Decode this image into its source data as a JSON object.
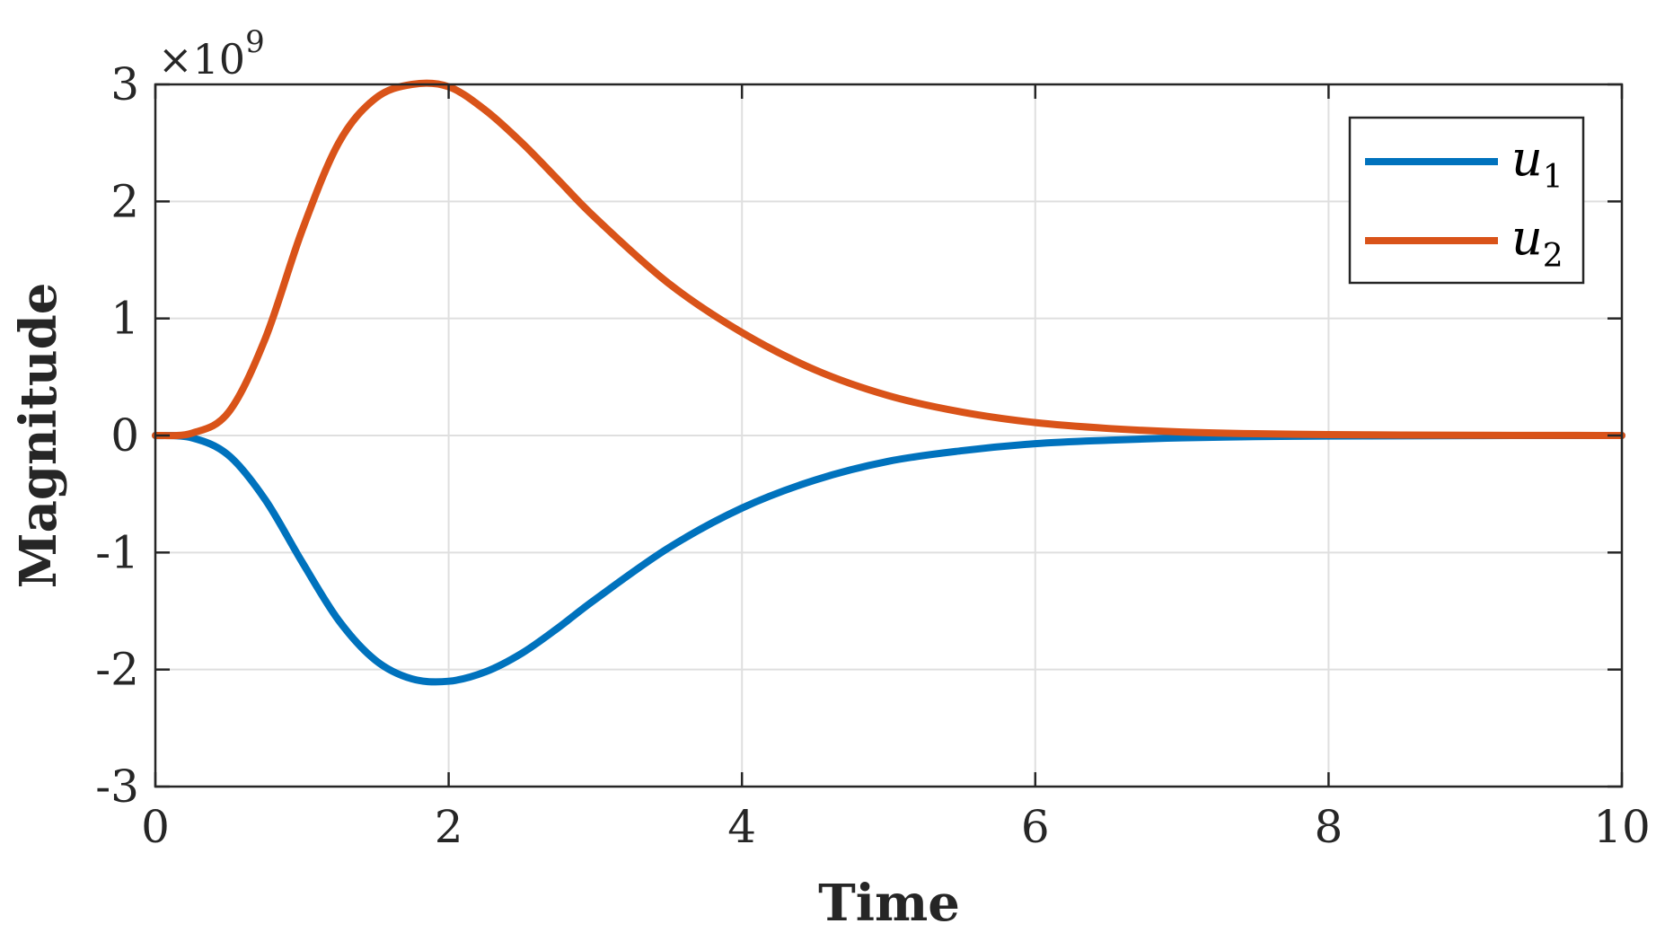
{
  "chart_data": {
    "type": "line",
    "xlabel": "Time",
    "ylabel": "Magnitude",
    "xlim": [
      0,
      10
    ],
    "ylim": [
      -3,
      3
    ],
    "xticks": [
      0,
      2,
      4,
      6,
      8,
      10
    ],
    "yticks": [
      -3,
      -2,
      -1,
      0,
      1,
      2,
      3
    ],
    "xtick_labels": [
      "0",
      "2",
      "4",
      "6",
      "8",
      "10"
    ],
    "ytick_labels": [
      "-3",
      "-2",
      "-1",
      "0",
      "1",
      "2",
      "3"
    ],
    "y_multiplier": "×10",
    "y_multiplier_exponent": "9",
    "grid": true,
    "legend_position": "top-right",
    "x": [
      0,
      0.25,
      0.5,
      0.75,
      1.0,
      1.25,
      1.5,
      1.75,
      2.0,
      2.25,
      2.5,
      2.75,
      3.0,
      3.5,
      4.0,
      4.5,
      5.0,
      5.5,
      6.0,
      6.5,
      7.0,
      7.5,
      8.0,
      8.5,
      9.0,
      9.5,
      10.0
    ],
    "series": [
      {
        "name": "u",
        "subscript": "1",
        "color": "#0072BD",
        "values": [
          0,
          -0.02,
          -0.17,
          -0.55,
          -1.08,
          -1.58,
          -1.92,
          -2.08,
          -2.1,
          -2.02,
          -1.86,
          -1.64,
          -1.4,
          -0.96,
          -0.62,
          -0.38,
          -0.22,
          -0.13,
          -0.07,
          -0.04,
          -0.02,
          -0.01,
          -0.005,
          -0.003,
          -0.001,
          0,
          0
        ]
      },
      {
        "name": "u",
        "subscript": "2",
        "color": "#D95319",
        "values": [
          0,
          0.02,
          0.2,
          0.83,
          1.75,
          2.5,
          2.88,
          3.0,
          2.98,
          2.78,
          2.5,
          2.18,
          1.86,
          1.3,
          0.88,
          0.56,
          0.34,
          0.2,
          0.11,
          0.06,
          0.03,
          0.015,
          0.008,
          0.004,
          0.002,
          0.001,
          0
        ]
      }
    ]
  }
}
